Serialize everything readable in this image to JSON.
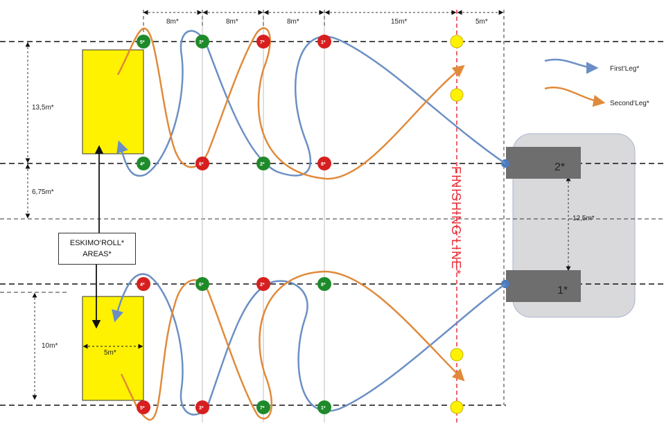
{
  "dims": {
    "top": [
      "8m*",
      "8m*",
      "8m*",
      "15m*",
      "5m*"
    ],
    "lane_width": "13,5m*",
    "gap": "6,75m*",
    "lower_lane": "10m*",
    "roll_width": "5m*",
    "start_gap": "12,5m*"
  },
  "legend": {
    "first": "First‘Leg*",
    "second": "Second‘Leg*"
  },
  "eskimo": {
    "line1": "ESKIMO‘ROLL*",
    "line2": "AREAS*"
  },
  "finishing_line": "FINISHING‘LINE*",
  "starts": {
    "upper": "2*",
    "lower": "1*"
  },
  "buoys": {
    "upper_top": [
      "5*",
      "3*",
      "7*",
      "1*"
    ],
    "upper_bottom": [
      "4*",
      "6*",
      "2*",
      "8*"
    ],
    "lower_top": [
      "4*",
      "6*",
      "2*",
      "8*"
    ],
    "lower_bottom": [
      "5*",
      "3*",
      "7*",
      "1*"
    ]
  },
  "colors": {
    "first_leg": "#6b8fc4",
    "second_leg": "#e08a3a",
    "buoy_green": "#1f8a2a",
    "buoy_red": "#d71f1f",
    "buoy_yellow": "#fff200",
    "roll_area": "#fff200",
    "start_block": "#6e6e6e",
    "start_zone": "#d9d9db",
    "finish_line": "#e8303a"
  }
}
